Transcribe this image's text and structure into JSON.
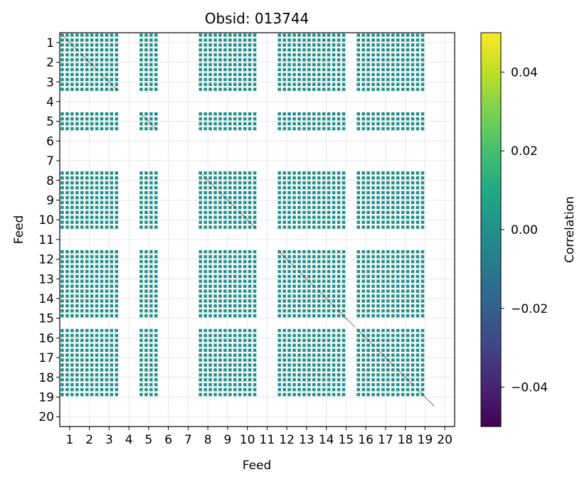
{
  "chart_data": {
    "type": "heatmap",
    "title": "Obsid: 013744",
    "xlabel": "Feed",
    "ylabel": "Feed",
    "feeds": [
      1,
      2,
      3,
      4,
      5,
      6,
      7,
      8,
      9,
      10,
      11,
      12,
      13,
      14,
      15,
      16,
      17,
      18,
      19,
      20
    ],
    "x_tick_labels": [
      "1",
      "2",
      "3",
      "4",
      "5",
      "6",
      "7",
      "8",
      "9",
      "10",
      "11",
      "12",
      "13",
      "14",
      "15",
      "16",
      "17",
      "18",
      "19",
      "20"
    ],
    "y_tick_labels": [
      "1",
      "2",
      "3",
      "4",
      "5",
      "6",
      "7",
      "8",
      "9",
      "10",
      "11",
      "12",
      "13",
      "14",
      "15",
      "16",
      "17",
      "18",
      "19",
      "20"
    ],
    "inactive_feeds": [
      4,
      6,
      7,
      11,
      20
    ],
    "partial_feeds": [
      15,
      19
    ],
    "sub_blocks_per_feed": 4,
    "cell_value": 0.0,
    "grid": true,
    "colorbar": {
      "label": "Correlation",
      "vmin": -0.05,
      "vmax": 0.05,
      "ticks": [
        -0.04,
        -0.02,
        0.0,
        0.02,
        0.04
      ],
      "tick_labels": [
        "−0.04",
        "−0.02",
        "0.00",
        "0.02",
        "0.04"
      ],
      "colormap": "viridis"
    }
  },
  "colors": {
    "cell": "#21918c",
    "diagonal_line": "#555555",
    "grid": "#e6e6e6",
    "axis": "#000000"
  }
}
